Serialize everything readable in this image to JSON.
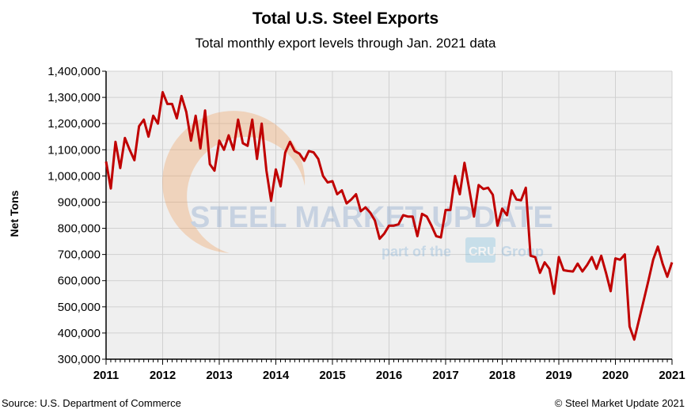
{
  "chart_data": {
    "type": "line",
    "title": "Total U.S. Steel Exports",
    "subtitle": "Total monthly export levels through Jan. 2021 data",
    "xlabel": "",
    "ylabel": "Net Tons",
    "ylim": [
      300000,
      1400000
    ],
    "yticks": [
      "300,000",
      "400,000",
      "500,000",
      "600,000",
      "700,000",
      "800,000",
      "900,000",
      "1,000,000",
      "1,100,000",
      "1,200,000",
      "1,300,000",
      "1,400,000"
    ],
    "xticks": [
      "2011",
      "2012",
      "2013",
      "2014",
      "2015",
      "2016",
      "2017",
      "2018",
      "2019",
      "2020",
      "2021"
    ],
    "grid": true,
    "legend": "none",
    "line_color": "#c00000",
    "x_start": "2011-01",
    "x_frequency": "monthly",
    "values": [
      1055000,
      952000,
      1130000,
      1030000,
      1145000,
      1100000,
      1060000,
      1190000,
      1215000,
      1150000,
      1230000,
      1200000,
      1320000,
      1275000,
      1275000,
      1220000,
      1305000,
      1245000,
      1135000,
      1230000,
      1105000,
      1250000,
      1045000,
      1020000,
      1135000,
      1100000,
      1155000,
      1100000,
      1215000,
      1125000,
      1115000,
      1215000,
      1065000,
      1200000,
      1020000,
      905000,
      1025000,
      960000,
      1090000,
      1130000,
      1095000,
      1085000,
      1058000,
      1095000,
      1090000,
      1065000,
      1000000,
      975000,
      980000,
      930000,
      945000,
      895000,
      910000,
      930000,
      865000,
      880000,
      860000,
      830000,
      760000,
      780000,
      810000,
      810000,
      815000,
      850000,
      845000,
      845000,
      770000,
      855000,
      845000,
      810000,
      770000,
      765000,
      870000,
      870000,
      1000000,
      930000,
      1050000,
      950000,
      845000,
      965000,
      950000,
      955000,
      928000,
      810000,
      875000,
      850000,
      945000,
      910000,
      907000,
      955000,
      695000,
      690000,
      630000,
      670000,
      645000,
      550000,
      690000,
      640000,
      637000,
      635000,
      665000,
      635000,
      660000,
      690000,
      645000,
      695000,
      630000,
      560000,
      685000,
      680000,
      700000,
      425000,
      375000,
      450000,
      525000,
      600000,
      680000,
      730000,
      665000,
      615000,
      670000
    ]
  },
  "source": "Source: U.S. Department of Commerce",
  "copyright": "© Steel Market Update 2021",
  "watermark": {
    "line1": "STEEL MARKET UPDATE",
    "line2_pre": "part of the",
    "badge": "CRU",
    "line2_post": "Group"
  }
}
